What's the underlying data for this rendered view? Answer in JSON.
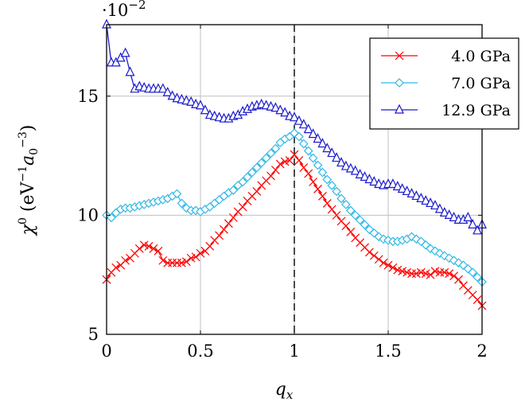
{
  "chart_data": {
    "type": "line",
    "x_axis": {
      "label": "q",
      "label_sub": "x",
      "min": 0,
      "max": 2,
      "ticks": [
        0,
        0.5,
        1,
        1.5,
        2
      ],
      "tick_labels": [
        "0",
        "0.5",
        "1",
        "1.5",
        "2"
      ]
    },
    "y_axis": {
      "label_parts": [
        "χ",
        "0",
        " (eV",
        "−1",
        "a",
        "0",
        "−3",
        ")"
      ],
      "min": 5,
      "max": 18,
      "ticks": [
        5,
        10,
        15
      ],
      "tick_labels": [
        "5",
        "10",
        "15"
      ],
      "multiplier_base": "·10",
      "multiplier_exp": "−2"
    },
    "grid": true,
    "vertical_line": {
      "x": 1,
      "style": "dashed"
    },
    "legend_position": "top-right",
    "series": [
      {
        "name": "4.0 GPa",
        "color": "#ff0000",
        "marker": "x",
        "x": [
          0,
          0.025,
          0.05,
          0.075,
          0.1,
          0.125,
          0.15,
          0.175,
          0.2,
          0.225,
          0.25,
          0.275,
          0.3,
          0.325,
          0.35,
          0.375,
          0.4,
          0.425,
          0.45,
          0.475,
          0.5,
          0.525,
          0.55,
          0.575,
          0.6,
          0.625,
          0.65,
          0.675,
          0.7,
          0.725,
          0.75,
          0.775,
          0.8,
          0.825,
          0.85,
          0.875,
          0.9,
          0.925,
          0.95,
          0.975,
          1,
          1.025,
          1.05,
          1.075,
          1.1,
          1.125,
          1.15,
          1.175,
          1.2,
          1.225,
          1.25,
          1.275,
          1.3,
          1.325,
          1.35,
          1.375,
          1.4,
          1.425,
          1.45,
          1.475,
          1.5,
          1.525,
          1.55,
          1.575,
          1.6,
          1.625,
          1.65,
          1.675,
          1.7,
          1.725,
          1.75,
          1.775,
          1.8,
          1.825,
          1.85,
          1.875,
          1.9,
          1.925,
          1.95,
          1.975,
          2
        ],
        "y": [
          7.3,
          7.6,
          7.8,
          7.9,
          8.1,
          8.2,
          8.4,
          8.6,
          8.75,
          8.7,
          8.6,
          8.5,
          8.1,
          8.0,
          8.0,
          8.0,
          8.0,
          8.05,
          8.2,
          8.25,
          8.4,
          8.5,
          8.7,
          8.95,
          9.15,
          9.4,
          9.65,
          9.9,
          10.15,
          10.35,
          10.6,
          10.8,
          11.0,
          11.25,
          11.45,
          11.65,
          11.9,
          12.15,
          12.25,
          12.3,
          12.55,
          12.3,
          12.0,
          11.75,
          11.4,
          11.1,
          10.8,
          10.5,
          10.25,
          10.0,
          9.75,
          9.55,
          9.3,
          9.05,
          8.85,
          8.65,
          8.45,
          8.3,
          8.15,
          8.0,
          7.9,
          7.8,
          7.7,
          7.65,
          7.6,
          7.55,
          7.55,
          7.6,
          7.55,
          7.5,
          7.65,
          7.6,
          7.6,
          7.55,
          7.45,
          7.3,
          7.05,
          6.85,
          6.65,
          6.45,
          6.2
        ]
      },
      {
        "name": "7.0 GPa",
        "color": "#33b8e6",
        "marker": "diamond",
        "x": [
          0,
          0.025,
          0.05,
          0.075,
          0.1,
          0.125,
          0.15,
          0.175,
          0.2,
          0.225,
          0.25,
          0.275,
          0.3,
          0.325,
          0.35,
          0.375,
          0.4,
          0.425,
          0.45,
          0.475,
          0.5,
          0.525,
          0.55,
          0.575,
          0.6,
          0.625,
          0.65,
          0.675,
          0.7,
          0.725,
          0.75,
          0.775,
          0.8,
          0.825,
          0.85,
          0.875,
          0.9,
          0.925,
          0.95,
          0.975,
          1,
          1.025,
          1.05,
          1.075,
          1.1,
          1.125,
          1.15,
          1.175,
          1.2,
          1.225,
          1.25,
          1.275,
          1.3,
          1.325,
          1.35,
          1.375,
          1.4,
          1.425,
          1.45,
          1.475,
          1.5,
          1.525,
          1.55,
          1.575,
          1.6,
          1.625,
          1.65,
          1.675,
          1.7,
          1.725,
          1.75,
          1.775,
          1.8,
          1.825,
          1.85,
          1.875,
          1.9,
          1.925,
          1.95,
          1.975,
          2
        ],
        "y": [
          10.0,
          9.9,
          10.1,
          10.25,
          10.3,
          10.3,
          10.35,
          10.4,
          10.45,
          10.5,
          10.55,
          10.6,
          10.65,
          10.7,
          10.8,
          10.9,
          10.5,
          10.3,
          10.2,
          10.2,
          10.15,
          10.25,
          10.35,
          10.5,
          10.65,
          10.8,
          10.95,
          11.05,
          11.25,
          11.4,
          11.6,
          11.8,
          12.0,
          12.2,
          12.4,
          12.6,
          12.8,
          13.05,
          13.2,
          13.3,
          13.45,
          13.3,
          13.0,
          12.7,
          12.4,
          12.1,
          11.8,
          11.5,
          11.25,
          11.0,
          10.7,
          10.45,
          10.2,
          10.0,
          9.8,
          9.6,
          9.4,
          9.25,
          9.1,
          9.0,
          8.95,
          8.9,
          8.9,
          8.95,
          9.0,
          9.1,
          9.0,
          8.9,
          8.75,
          8.6,
          8.5,
          8.4,
          8.3,
          8.2,
          8.1,
          8.0,
          7.9,
          7.75,
          7.6,
          7.4,
          7.2
        ]
      },
      {
        "name": "12.9 GPa",
        "color": "#1a1acc",
        "marker": "triangle",
        "x": [
          0,
          0.025,
          0.05,
          0.075,
          0.1,
          0.125,
          0.15,
          0.175,
          0.2,
          0.225,
          0.25,
          0.275,
          0.3,
          0.325,
          0.35,
          0.375,
          0.4,
          0.425,
          0.45,
          0.475,
          0.5,
          0.525,
          0.55,
          0.575,
          0.6,
          0.625,
          0.65,
          0.675,
          0.7,
          0.725,
          0.75,
          0.775,
          0.8,
          0.825,
          0.85,
          0.875,
          0.9,
          0.925,
          0.95,
          0.975,
          1,
          1.025,
          1.05,
          1.075,
          1.1,
          1.125,
          1.15,
          1.175,
          1.2,
          1.225,
          1.25,
          1.275,
          1.3,
          1.325,
          1.35,
          1.375,
          1.4,
          1.425,
          1.45,
          1.475,
          1.5,
          1.525,
          1.55,
          1.575,
          1.6,
          1.625,
          1.65,
          1.675,
          1.7,
          1.725,
          1.75,
          1.775,
          1.8,
          1.825,
          1.85,
          1.875,
          1.9,
          1.925,
          1.95,
          1.975,
          2
        ],
        "y": [
          18.0,
          16.4,
          16.4,
          16.6,
          16.8,
          16.0,
          15.3,
          15.4,
          15.35,
          15.3,
          15.3,
          15.3,
          15.3,
          15.15,
          15.0,
          14.9,
          14.85,
          14.8,
          14.75,
          14.65,
          14.6,
          14.4,
          14.2,
          14.15,
          14.1,
          14.05,
          14.05,
          14.15,
          14.2,
          14.35,
          14.45,
          14.55,
          14.6,
          14.65,
          14.6,
          14.55,
          14.5,
          14.4,
          14.3,
          14.15,
          14.1,
          13.95,
          13.8,
          13.6,
          13.4,
          13.2,
          13.0,
          12.8,
          12.6,
          12.4,
          12.2,
          12.05,
          11.95,
          11.85,
          11.7,
          11.6,
          11.5,
          11.4,
          11.3,
          11.25,
          11.3,
          11.3,
          11.2,
          11.1,
          11.0,
          10.9,
          10.8,
          10.7,
          10.6,
          10.5,
          10.4,
          10.25,
          10.1,
          10.0,
          9.9,
          9.8,
          9.8,
          9.9,
          9.6,
          9.35,
          9.6
        ]
      }
    ]
  }
}
